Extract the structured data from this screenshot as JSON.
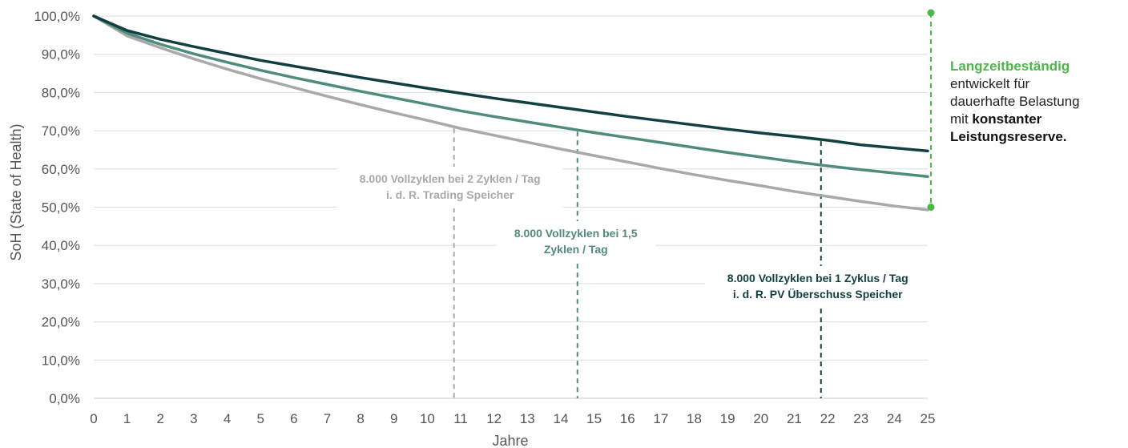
{
  "chart_data": {
    "type": "line",
    "xlabel": "Jahre",
    "ylabel": "SoH (State of Health)",
    "x": [
      0,
      1,
      2,
      3,
      4,
      5,
      6,
      7,
      8,
      9,
      10,
      11,
      12,
      13,
      14,
      15,
      16,
      17,
      18,
      19,
      20,
      21,
      22,
      23,
      24,
      25
    ],
    "xlim": [
      0,
      25
    ],
    "ylim": [
      0,
      100
    ],
    "y_ticks": [
      "0,0%",
      "10,0%",
      "20,0%",
      "30,0%",
      "40,0%",
      "50,0%",
      "60,0%",
      "70,0%",
      "80,0%",
      "90,0%",
      "100,0%"
    ],
    "x_ticks": [
      "0",
      "1",
      "2",
      "3",
      "4",
      "5",
      "6",
      "7",
      "8",
      "9",
      "10",
      "11",
      "12",
      "13",
      "14",
      "15",
      "16",
      "17",
      "18",
      "19",
      "20",
      "21",
      "22",
      "23",
      "24",
      "25"
    ],
    "grid": "horizontal",
    "series": [
      {
        "color": "#123f42",
        "values": [
          100,
          96.2,
          93.9,
          92.0,
          90.2,
          88.4,
          86.9,
          85.4,
          83.9,
          82.5,
          81.1,
          79.8,
          78.5,
          77.3,
          76.1,
          74.9,
          73.7,
          72.6,
          71.5,
          70.4,
          69.4,
          68.5,
          67.5,
          66.3,
          65.5,
          64.7
        ]
      },
      {
        "color": "#4f8c7d",
        "values": [
          100,
          95.5,
          92.6,
          90.1,
          87.9,
          85.8,
          83.9,
          82.1,
          80.3,
          78.6,
          76.9,
          75.2,
          73.7,
          72.3,
          70.9,
          69.5,
          68.2,
          66.9,
          65.6,
          64.3,
          63.1,
          61.9,
          60.8,
          59.8,
          58.9,
          58.0
        ]
      },
      {
        "color": "#a9a9a9",
        "values": [
          100,
          94.8,
          91.7,
          88.8,
          86.1,
          83.6,
          81.3,
          79.0,
          76.8,
          74.7,
          72.7,
          70.6,
          68.8,
          67.0,
          65.2,
          63.5,
          61.8,
          60.1,
          58.5,
          57.0,
          55.6,
          54.1,
          52.8,
          51.5,
          50.3,
          49.3
        ]
      }
    ],
    "markers": [
      {
        "x": 10.8,
        "color": "#a9a9a9",
        "label_lines": [
          "8.000 Vollzyklen bei 2 Zyklen / Tag",
          "i. d. R. Trading Speicher"
        ]
      },
      {
        "x": 14.5,
        "color": "#4f8c7d",
        "label_lines": [
          "8.000 Vollzyklen bei 1,5",
          "Zyklen / Tag"
        ]
      },
      {
        "x": 21.8,
        "color": "#123f42",
        "label_lines": [
          "8.000 Vollzyklen bei 1 Zyklus / Tag",
          "i. d. R. PV Überschuss Speicher"
        ]
      }
    ],
    "range_marker": {
      "x": 25,
      "y_from": 50,
      "y_to": 100,
      "color": "#4cb848"
    }
  },
  "side_note": {
    "highlight": "Langzeitbeständig",
    "line2": "entwickelt für",
    "line3": "dauerhafte Belastung",
    "line4_pre": "mit ",
    "line4_bold": "konstanter",
    "line5_bold": "Leistungsreserve."
  }
}
